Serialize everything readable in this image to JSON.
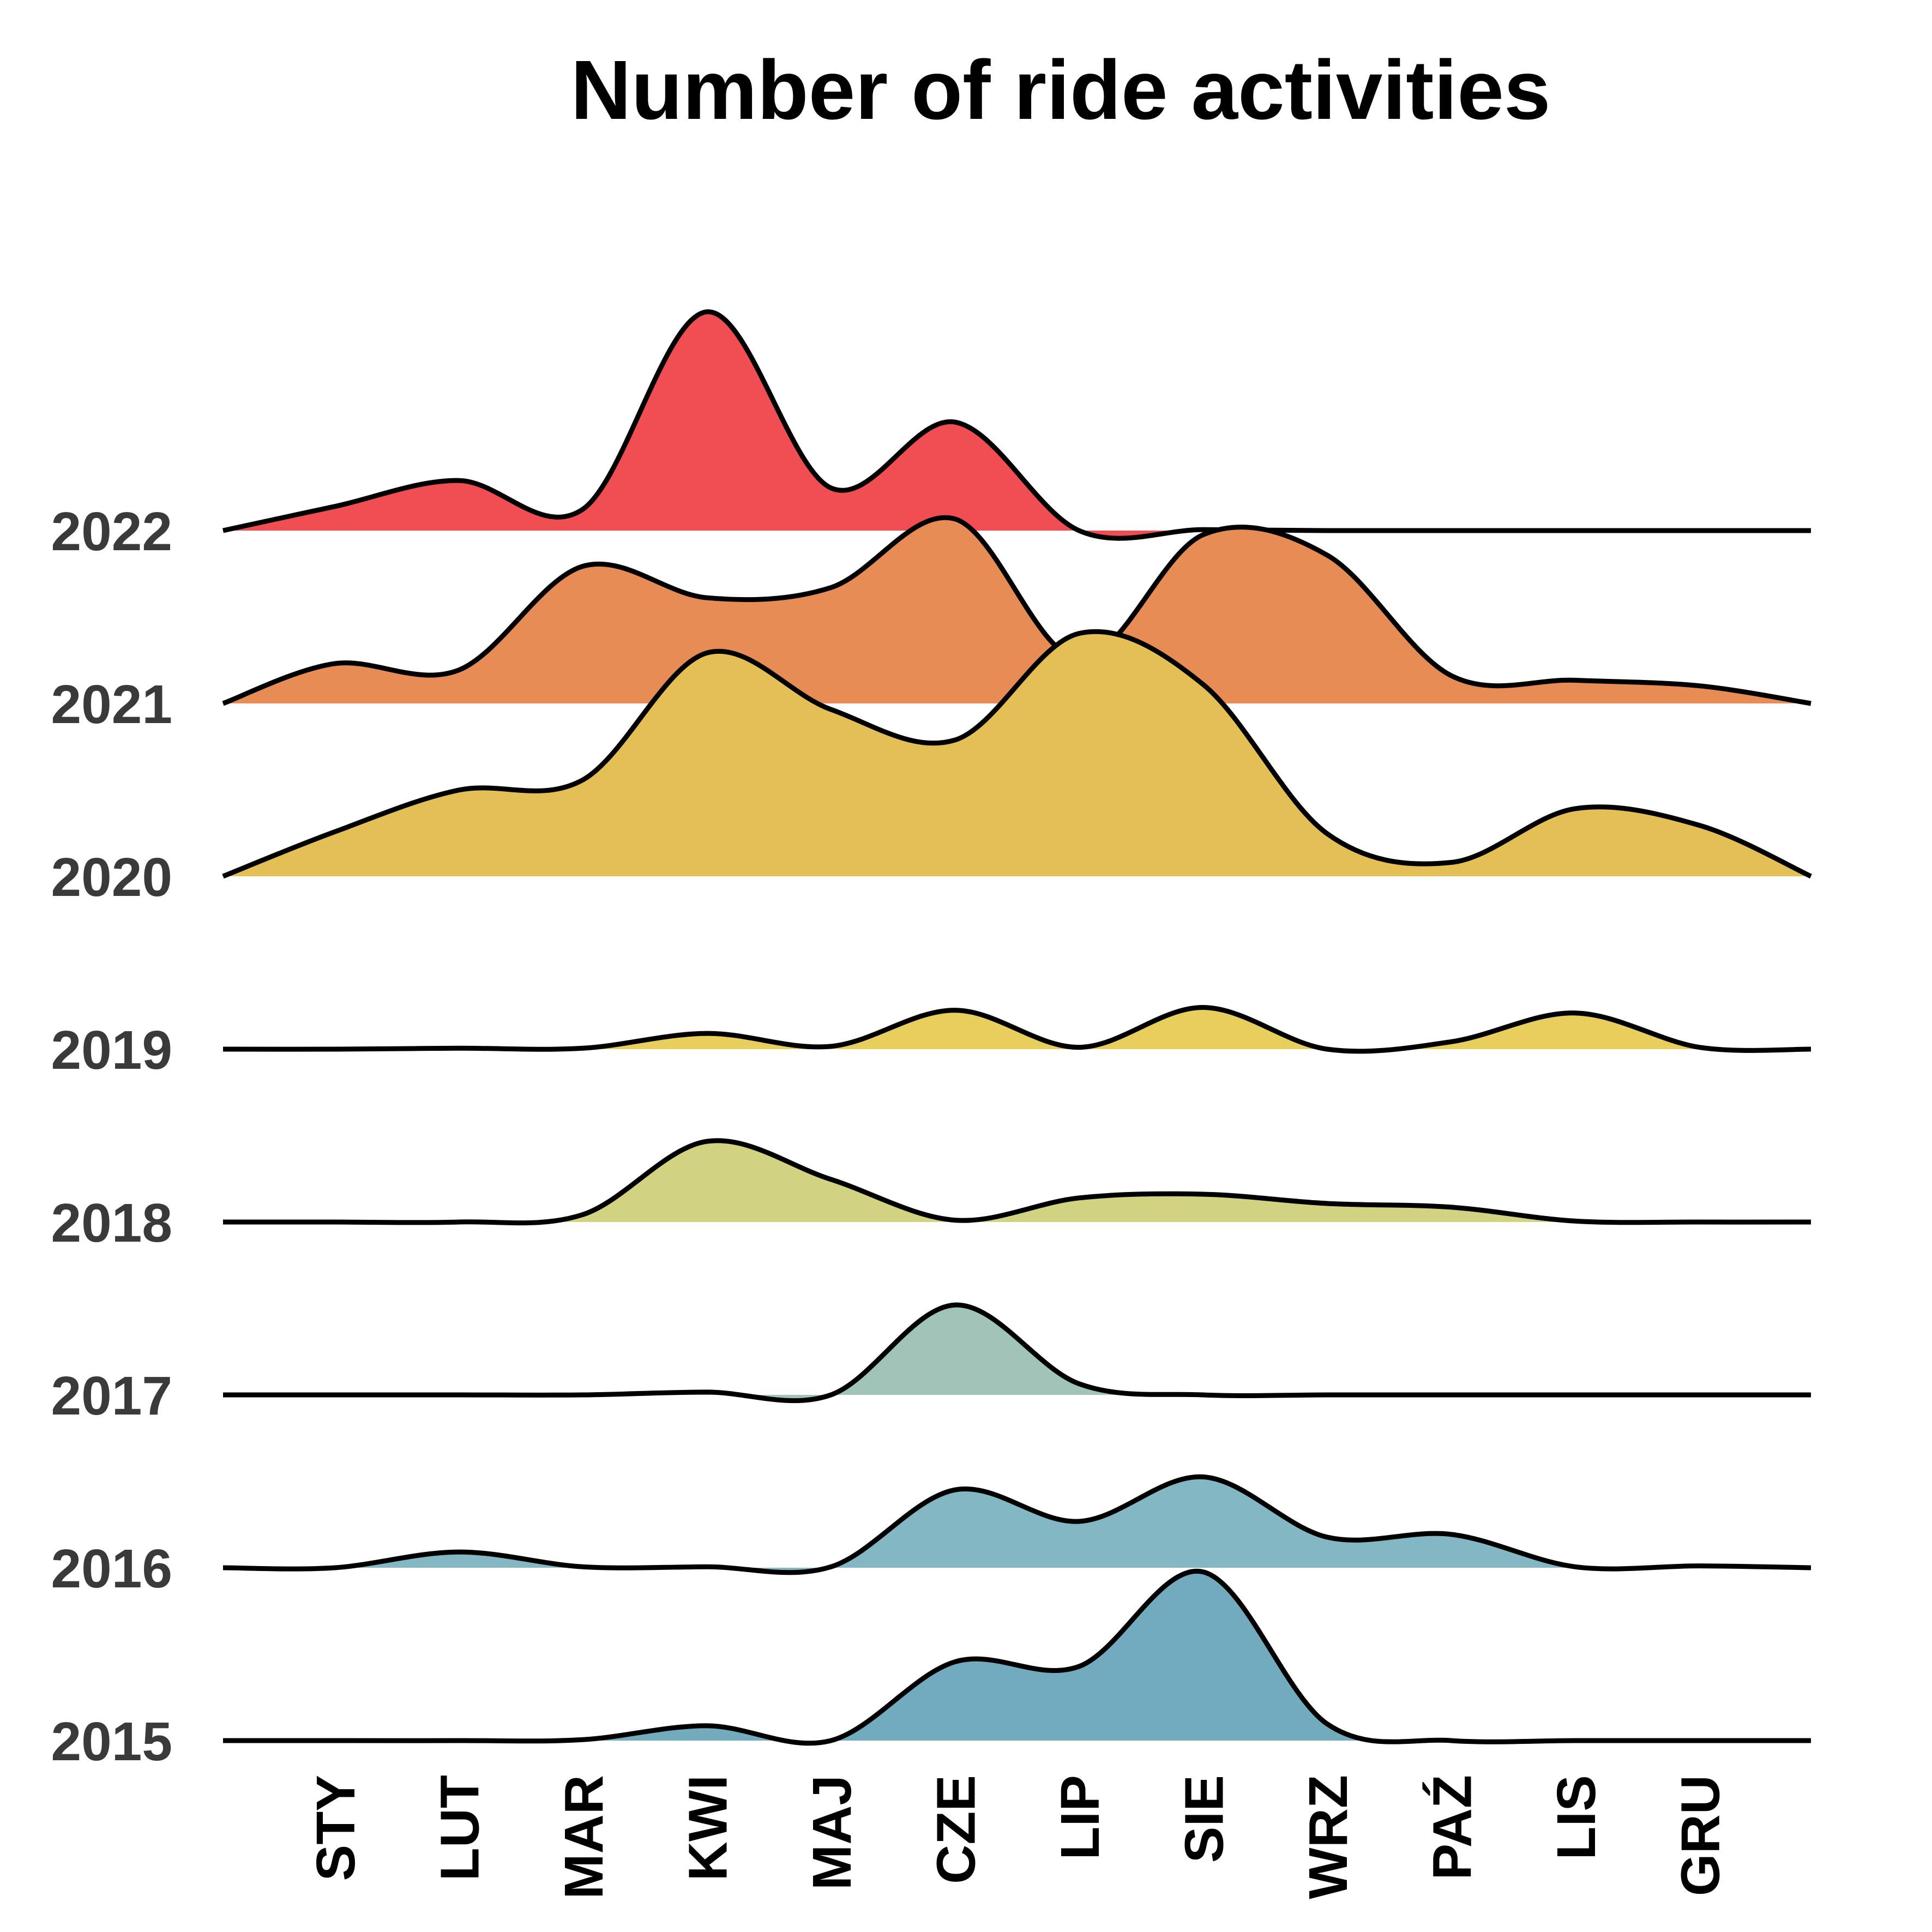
{
  "chart_data": {
    "type": "area",
    "title": "Number of ride activities",
    "xlabel": "",
    "ylabel": "",
    "categories": [
      "STY",
      "LUT",
      "MAR",
      "KWI",
      "MAJ",
      "CZE",
      "LIP",
      "SIE",
      "WRZ",
      "PAŹ",
      "LIS",
      "GRU"
    ],
    "x": [
      0.1,
      1,
      2,
      3,
      4,
      5,
      6,
      7,
      8,
      9,
      10,
      11,
      12,
      12.9
    ],
    "grid": false,
    "legend": "none",
    "series": [
      {
        "name": "2015",
        "color": "#71abbd",
        "values": [
          0,
          0,
          0,
          0.01,
          0.16,
          0,
          0.85,
          0.8,
          1.82,
          0.18,
          0,
          0,
          0,
          0
        ]
      },
      {
        "name": "2016",
        "color": "#82b7c3",
        "values": [
          0,
          0,
          0.17,
          0.01,
          0.01,
          0.01,
          0.84,
          0.5,
          0.98,
          0.33,
          0.36,
          0.01,
          0.02,
          0
        ]
      },
      {
        "name": "2017",
        "color": "#a0c5b8",
        "values": [
          0,
          0,
          0,
          0,
          0.03,
          0,
          0.97,
          0.12,
          0,
          0,
          0,
          0,
          0,
          0
        ]
      },
      {
        "name": "2018",
        "color": "#d1d381",
        "values": [
          0,
          0,
          0,
          0.08,
          0.87,
          0.46,
          0.02,
          0.26,
          0.3,
          0.2,
          0.16,
          0.01,
          0,
          0
        ]
      },
      {
        "name": "2019",
        "color": "#e8ce5c",
        "values": [
          0,
          0,
          0.01,
          0.01,
          0.17,
          0.03,
          0.42,
          0.02,
          0.45,
          0,
          0.08,
          0.39,
          0.02,
          0
        ]
      },
      {
        "name": "2020",
        "color": "#e3bf56",
        "values": [
          0,
          0.48,
          0.93,
          1.04,
          2.41,
          1.8,
          1.47,
          2.62,
          2.07,
          0.46,
          0.15,
          0.73,
          0.55,
          0
        ]
      },
      {
        "name": "2021",
        "color": "#e88c56",
        "values": [
          0,
          0.43,
          0.36,
          1.48,
          1.14,
          1.25,
          1.99,
          0.48,
          1.82,
          1.6,
          0.3,
          0.25,
          0.19,
          0
        ]
      },
      {
        "name": "2022",
        "color": "#f04e52",
        "values": [
          0,
          0.26,
          0.54,
          0.23,
          2.36,
          0.46,
          1.17,
          0,
          0.01,
          0,
          0,
          0,
          0,
          0
        ]
      }
    ]
  }
}
